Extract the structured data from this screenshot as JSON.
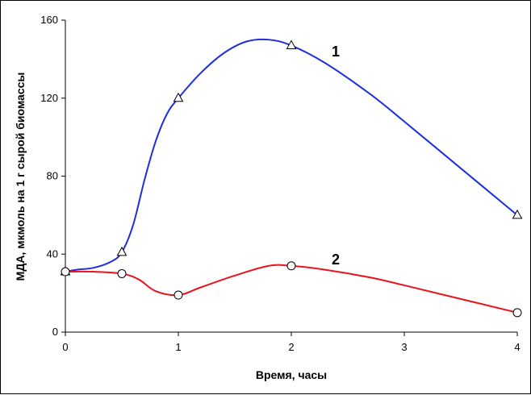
{
  "chart_data": {
    "type": "line",
    "title": "",
    "xlabel": "Время, часы",
    "ylabel": "МДА, мкмоль на 1 г сырой биомассы",
    "xlim": [
      0,
      4
    ],
    "ylim": [
      0,
      160
    ],
    "xticks": [
      0,
      1,
      2,
      3,
      4
    ],
    "yticks": [
      0,
      40,
      80,
      120,
      160
    ],
    "grid": false,
    "series": [
      {
        "name": "1",
        "color": "#1f2fe0",
        "marker": "triangle",
        "x": [
          0,
          0.5,
          1,
          2,
          4
        ],
        "y": [
          31,
          41,
          120,
          147,
          60
        ],
        "curve": [
          [
            0,
            31
          ],
          [
            0.1,
            32
          ],
          [
            0.25,
            33
          ],
          [
            0.4,
            36
          ],
          [
            0.5,
            41
          ],
          [
            0.6,
            55
          ],
          [
            0.7,
            78
          ],
          [
            0.8,
            98
          ],
          [
            0.9,
            112
          ],
          [
            1,
            120
          ],
          [
            1.2,
            133
          ],
          [
            1.4,
            143
          ],
          [
            1.6,
            149
          ],
          [
            1.8,
            150
          ],
          [
            2,
            147
          ],
          [
            2.3,
            138
          ],
          [
            2.7,
            122
          ],
          [
            3,
            108
          ],
          [
            3.5,
            84
          ],
          [
            4,
            60
          ]
        ]
      },
      {
        "name": "2",
        "color": "#e8141e",
        "marker": "circle",
        "x": [
          0,
          0.5,
          1,
          2,
          4
        ],
        "y": [
          31,
          30,
          19,
          34,
          10
        ],
        "curve": [
          [
            0,
            31
          ],
          [
            0.25,
            31
          ],
          [
            0.5,
            30
          ],
          [
            0.65,
            27
          ],
          [
            0.8,
            21
          ],
          [
            1,
            19
          ],
          [
            1.2,
            23
          ],
          [
            1.5,
            29
          ],
          [
            1.8,
            34
          ],
          [
            2,
            34
          ],
          [
            2.3,
            32
          ],
          [
            2.7,
            28
          ],
          [
            3,
            24
          ],
          [
            3.5,
            17
          ],
          [
            4,
            10
          ]
        ]
      }
    ]
  }
}
